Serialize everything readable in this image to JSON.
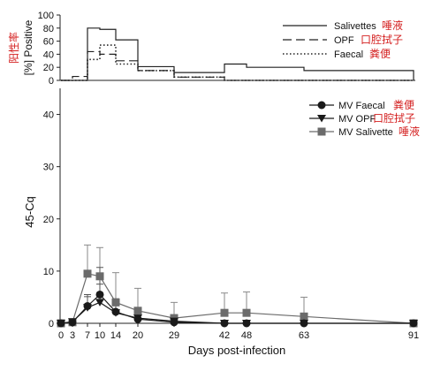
{
  "chart_data": [
    {
      "type": "line",
      "step": true,
      "ylabel_cn": "阳性率",
      "ylabel": "[%] Positive",
      "yticks": [
        0,
        20,
        40,
        60,
        80,
        100
      ],
      "ylim": [
        0,
        100
      ],
      "legend_placement": "top-right",
      "series": [
        {
          "name": "Salivettes",
          "name_cn": "唾液",
          "line_style": "solid",
          "x": [
            0,
            3,
            7,
            10,
            14,
            20,
            29,
            42,
            48,
            63,
            91
          ],
          "values": [
            0,
            0,
            80,
            78,
            62,
            21,
            12,
            25,
            20,
            15,
            0
          ]
        },
        {
          "name": "OPF",
          "name_cn": "口腔拭子",
          "line_style": "dashed",
          "x": [
            0,
            3,
            7,
            10,
            14,
            20,
            29,
            42,
            48,
            63,
            91
          ],
          "values": [
            0,
            6,
            44,
            40,
            30,
            15,
            5,
            0,
            0,
            0,
            0
          ]
        },
        {
          "name": "Faecal",
          "name_cn": "粪便",
          "line_style": "dotted",
          "x": [
            0,
            3,
            7,
            10,
            14,
            20,
            29,
            42,
            48,
            63,
            91
          ],
          "values": [
            0,
            0,
            32,
            54,
            25,
            15,
            5,
            0,
            0,
            0,
            0
          ]
        }
      ]
    },
    {
      "type": "line",
      "xlabel": "Days post-infection",
      "ylabel": "45-Cq",
      "categories": [
        0,
        3,
        7,
        10,
        14,
        20,
        29,
        42,
        48,
        63,
        91
      ],
      "yticks": [
        0,
        10,
        20,
        30,
        40
      ],
      "ylim": [
        0,
        45
      ],
      "legend_placement": "top-right",
      "series": [
        {
          "name": "MV Faecal",
          "name_cn": "粪便",
          "marker": "circle",
          "color": "#1a1a1a",
          "x": [
            0,
            3,
            7,
            10,
            14,
            20,
            29,
            42,
            48,
            63,
            91
          ],
          "values": [
            0,
            0.2,
            3.3,
            5.5,
            2.2,
            0.8,
            0.2,
            0,
            0,
            0,
            0
          ],
          "error": [
            0,
            0.3,
            1.8,
            5.2,
            2.5,
            1.5,
            0.5,
            0,
            0,
            0,
            0
          ]
        },
        {
          "name": "MV OPF",
          "name_cn": "口腔拭子",
          "marker": "triangle-down",
          "color": "#1a1a1a",
          "x": [
            0,
            3,
            7,
            10,
            14,
            20,
            29,
            42,
            48,
            63,
            91
          ],
          "values": [
            0,
            0.3,
            3.0,
            4.0,
            2.0,
            1.0,
            0.4,
            0,
            0,
            0,
            0
          ],
          "error": [
            0,
            0.4,
            2.5,
            3.5,
            2.5,
            2.0,
            1.0,
            0,
            0,
            0,
            0
          ]
        },
        {
          "name": "MV Salivette",
          "name_cn": "唾液",
          "marker": "square",
          "color": "#6b6b6b",
          "x": [
            0,
            3,
            7,
            10,
            14,
            20,
            29,
            42,
            48,
            63,
            91
          ],
          "values": [
            0,
            0.2,
            9.5,
            9.0,
            4.0,
            2.4,
            1.0,
            2.0,
            2.0,
            1.3,
            0
          ],
          "error": [
            0,
            0.5,
            5.5,
            5.5,
            5.7,
            4.3,
            3.0,
            3.8,
            4.0,
            3.7,
            0
          ]
        }
      ]
    }
  ]
}
